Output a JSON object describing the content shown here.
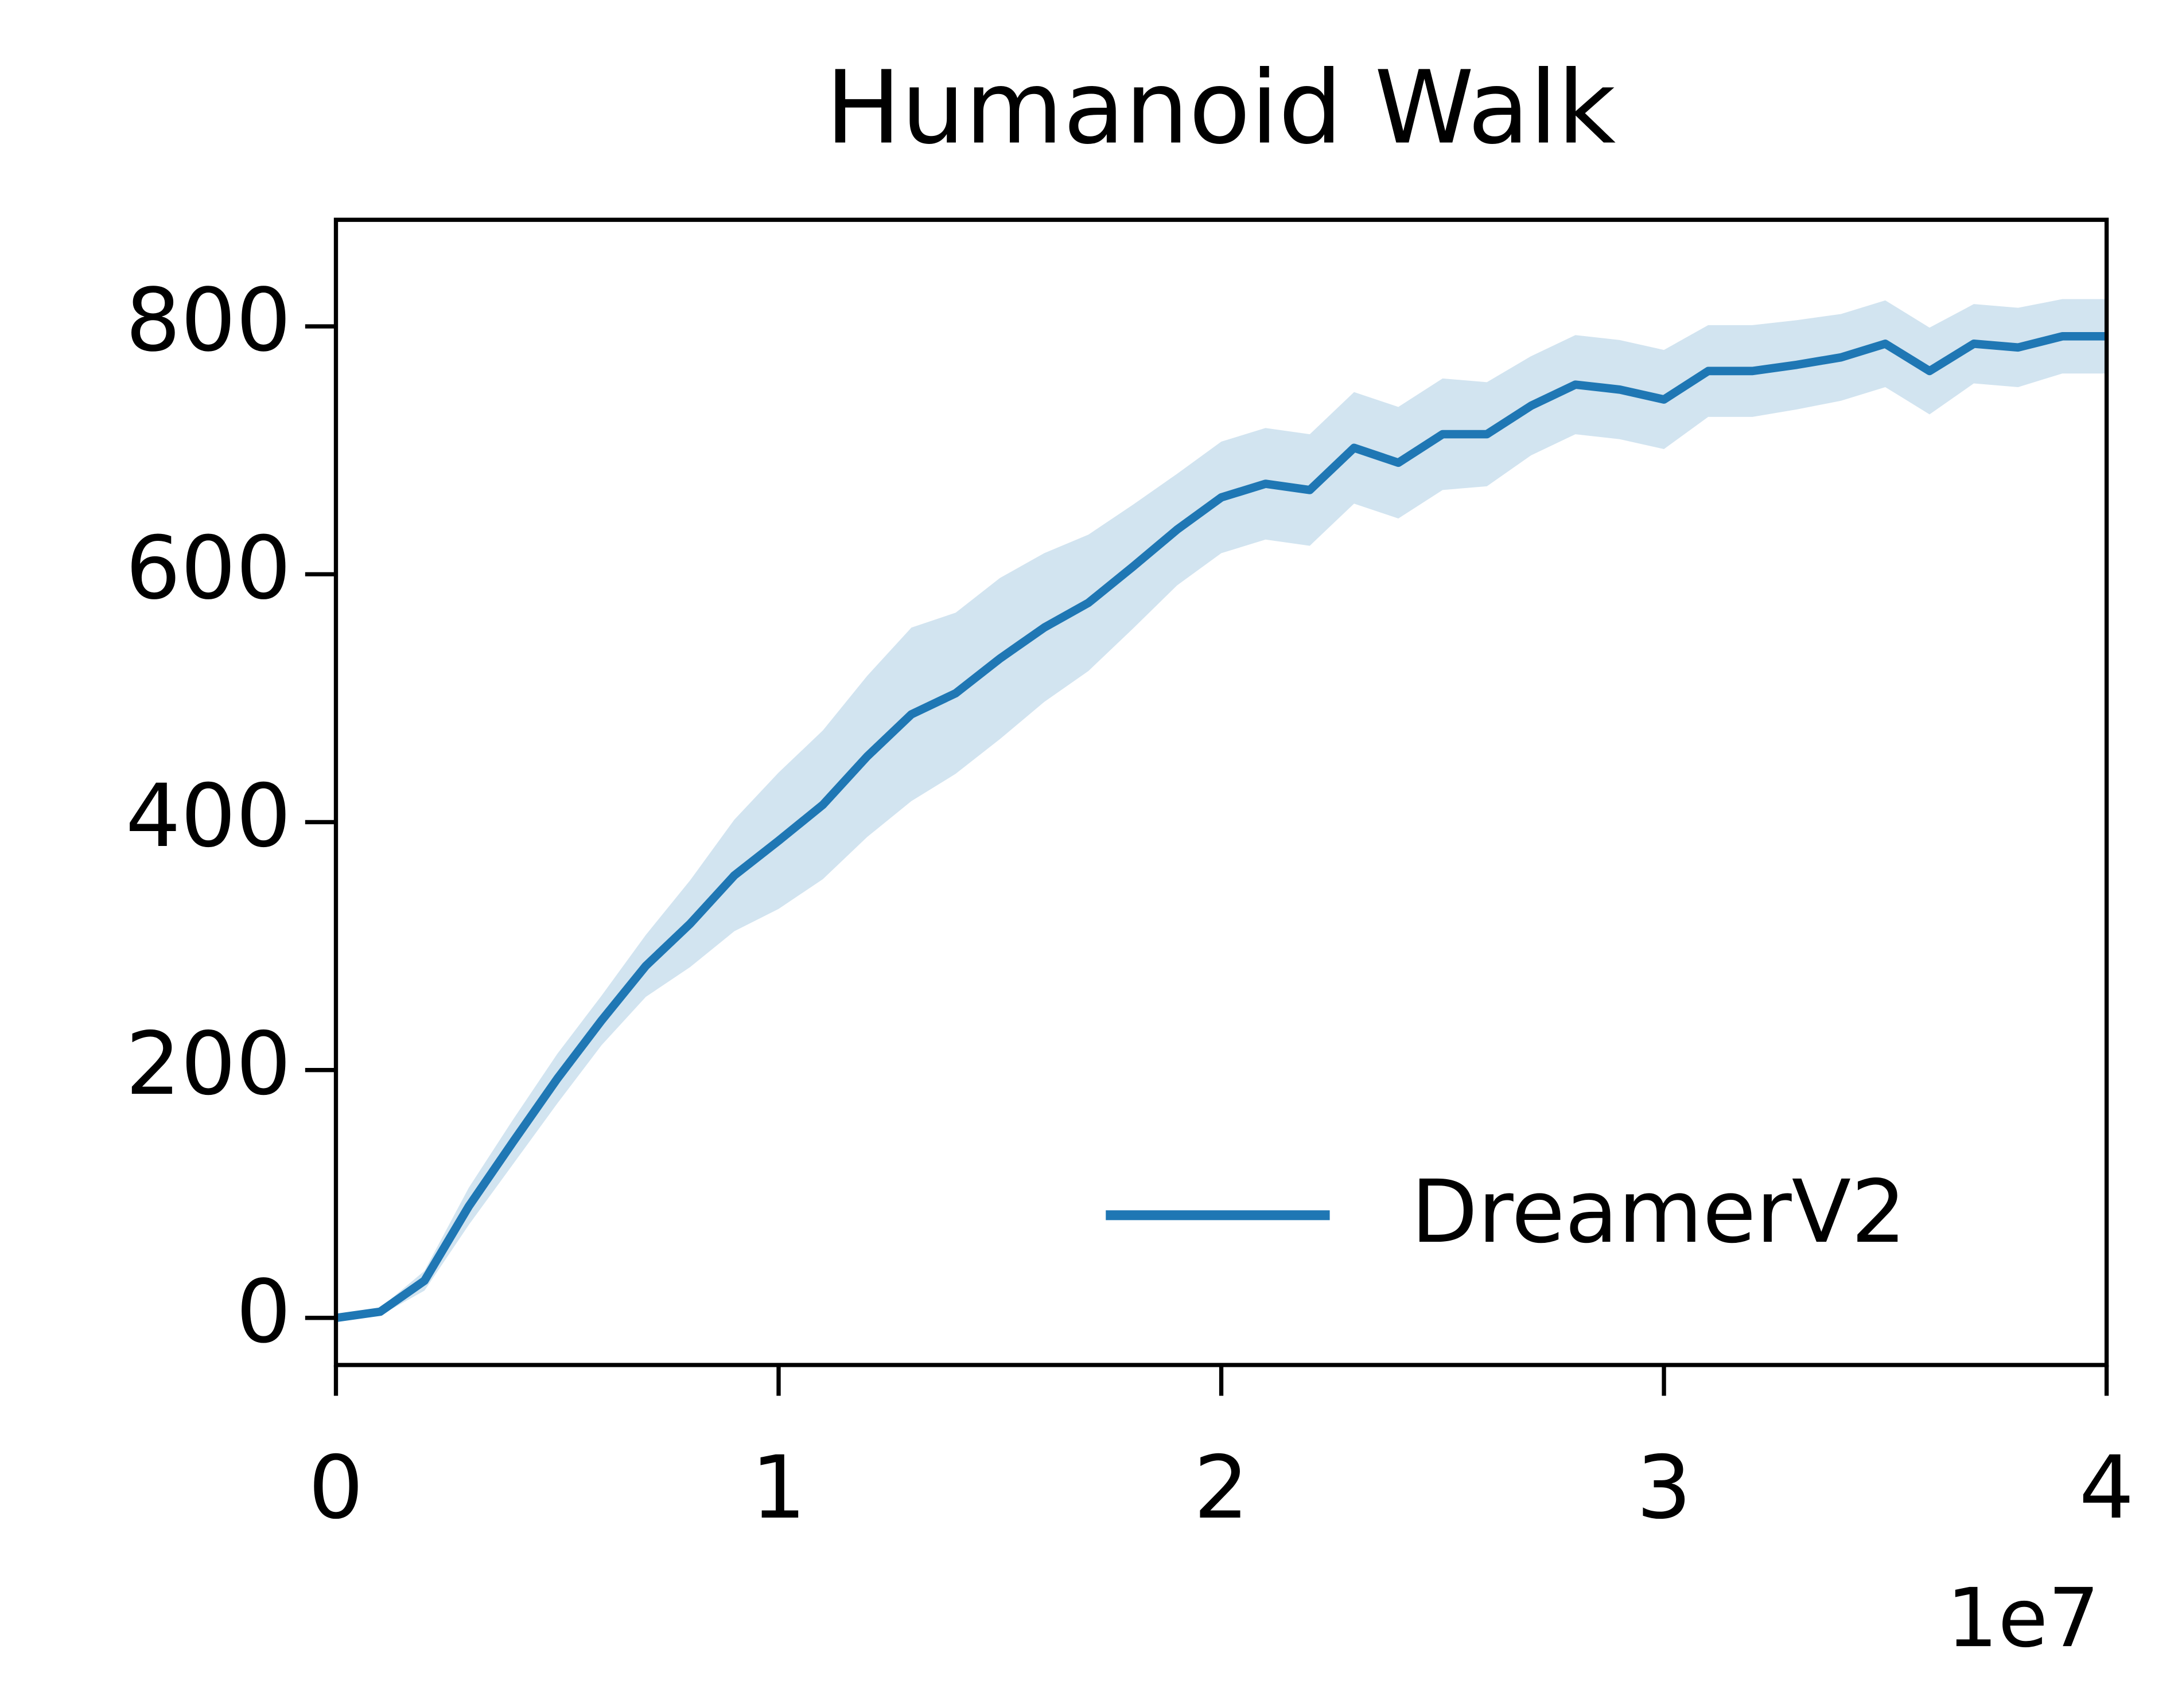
{
  "chart_data": {
    "type": "line",
    "title": "Humanoid Walk",
    "x": [
      0,
      1000000,
      2000000,
      3000000,
      4000000,
      5000000,
      6000000,
      7000000,
      8000000,
      9000000,
      10000000,
      11000000,
      12000000,
      13000000,
      14000000,
      15000000,
      16000000,
      17000000,
      18000000,
      19000000,
      20000000,
      21000000,
      22000000,
      23000000,
      24000000,
      25000000,
      26000000,
      27000000,
      28000000,
      29000000,
      30000000,
      31000000,
      32000000,
      33000000,
      34000000,
      35000000,
      36000000,
      37000000,
      38000000,
      39000000,
      40000000
    ],
    "series": [
      {
        "name": "DreamerV2",
        "color": "#1f77b4",
        "band_color": "#1f77b4",
        "values": [
          0,
          5,
          30,
          90,
          142,
          193,
          240,
          284,
          318,
          357,
          385,
          414,
          453,
          487,
          504,
          532,
          557,
          577,
          606,
          636,
          662,
          673,
          668,
          702,
          690,
          713,
          713,
          736,
          753,
          749,
          741,
          764,
          764,
          769,
          775,
          786,
          764,
          786,
          783,
          792,
          792
        ],
        "lower": [
          0,
          2,
          22,
          75,
          124,
          173,
          220,
          259,
          283,
          312,
          330,
          354,
          388,
          417,
          439,
          467,
          497,
          522,
          556,
          591,
          617,
          628,
          623,
          657,
          645,
          668,
          671,
          696,
          713,
          709,
          701,
          727,
          727,
          733,
          740,
          751,
          729,
          754,
          751,
          762,
          762
        ],
        "upper": [
          0,
          8,
          38,
          105,
          160,
          213,
          260,
          309,
          353,
          402,
          440,
          474,
          518,
          557,
          569,
          597,
          617,
          632,
          656,
          681,
          707,
          718,
          713,
          747,
          735,
          758,
          755,
          776,
          793,
          789,
          781,
          801,
          801,
          805,
          810,
          821,
          799,
          818,
          815,
          822,
          822
        ]
      }
    ],
    "xlim": [
      0,
      40000000
    ],
    "xticks": [
      0,
      {
        "value": 10000000,
        "label": "1"
      },
      {
        "value": 20000000,
        "label": "2"
      },
      {
        "value": 30000000,
        "label": "3"
      },
      {
        "value": 40000000,
        "label": "4"
      }
    ],
    "x_offset_label": "1e7",
    "ylim": [
      -38,
      886
    ],
    "yticks": [
      0,
      200,
      400,
      600,
      800
    ],
    "legend": "lower right"
  }
}
